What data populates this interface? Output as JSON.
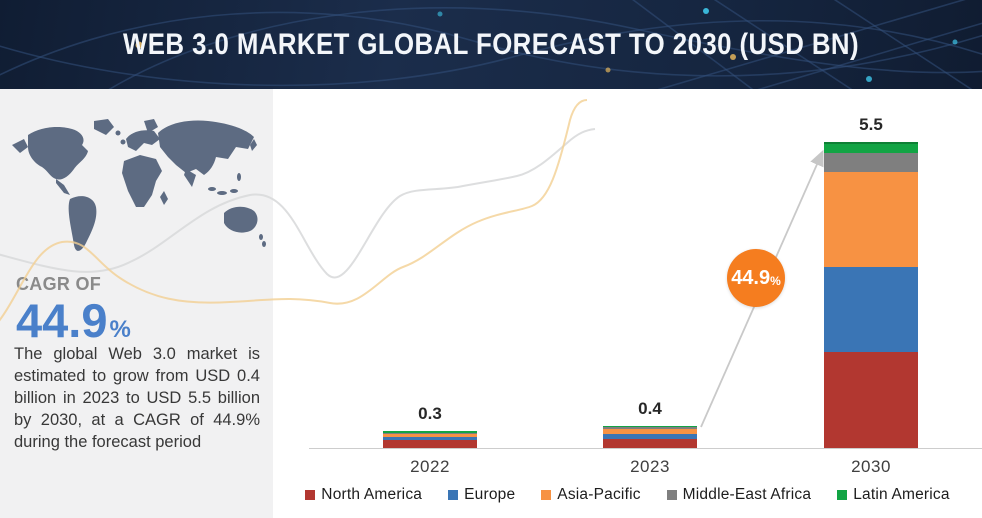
{
  "header": {
    "title": "WEB 3.0 MARKET GLOBAL FORECAST TO 2030 (USD BN)"
  },
  "sidebar": {
    "cagr_label": "CAGR OF",
    "cagr_value": "44.9",
    "cagr_percent_sign": "%",
    "description": "The global Web 3.0 market is estimated to grow from USD 0.4 billion in 2023 to USD 5.5 billion by 2030, at a CAGR of 44.9% during the forecast period"
  },
  "chart_data": {
    "type": "bar",
    "stacked": true,
    "title": "WEB 3.0 MARKET GLOBAL FORECAST TO 2030 (USD BN)",
    "value_unit": "USD BN",
    "categories": [
      "2022",
      "2023",
      "2030"
    ],
    "totals": [
      0.3,
      0.4,
      5.5
    ],
    "total_labels": [
      "0.3",
      "0.4",
      "5.5"
    ],
    "series": [
      {
        "name": "North America",
        "color": "#b23730",
        "values": [
          0.14,
          0.17,
          1.72
        ]
      },
      {
        "name": "Europe",
        "color": "#3a75b5",
        "values": [
          0.05,
          0.08,
          1.53
        ]
      },
      {
        "name": "Asia-Pacific",
        "color": "#f79243",
        "values": [
          0.07,
          0.1,
          1.71
        ]
      },
      {
        "name": "Middle-East Africa",
        "color": "#7f7f7f",
        "values": [
          0.01,
          0.02,
          0.34
        ]
      },
      {
        "name": "Latin America",
        "color": "#12a444",
        "values": [
          0.03,
          0.03,
          0.2
        ]
      }
    ],
    "annotation": {
      "value": "44.9",
      "unit": "%",
      "color": "#f57d1f"
    },
    "legend_position": "bottom",
    "ylim": [
      0,
      5.8
    ],
    "grid": false
  }
}
